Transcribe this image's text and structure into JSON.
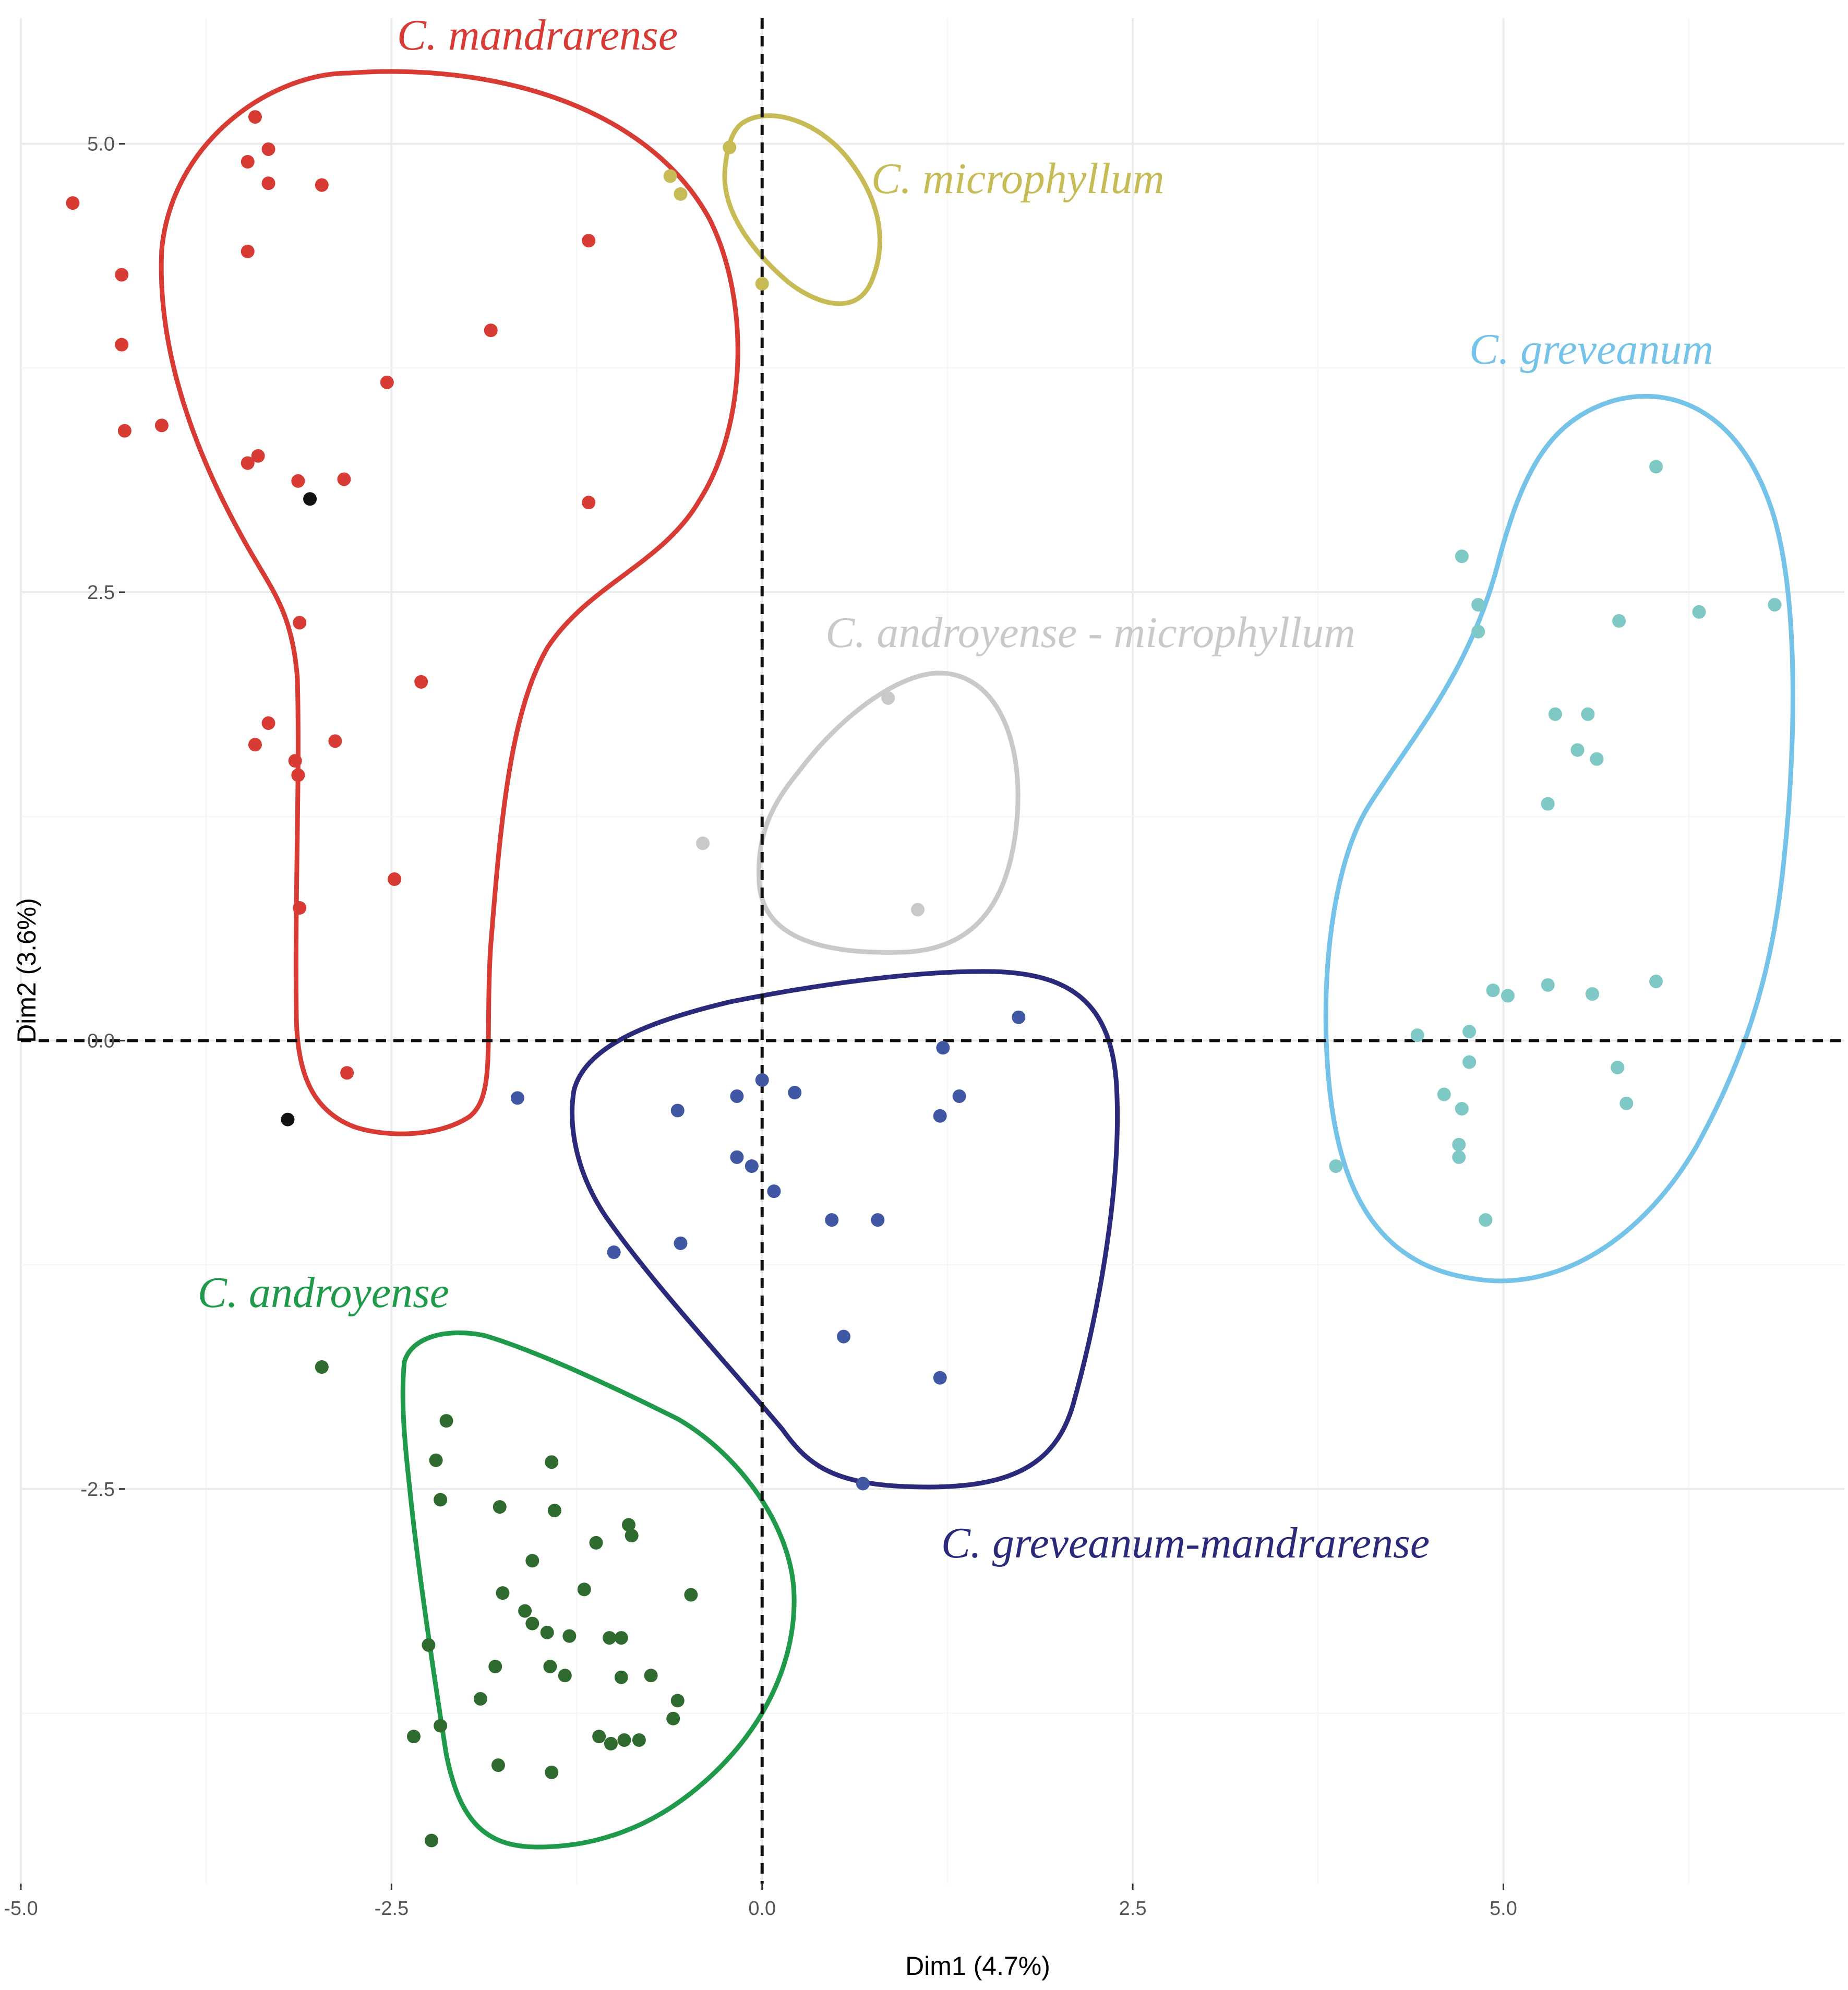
{
  "chart_data": {
    "type": "scatter",
    "xlabel": "Dim1 (4.7%)",
    "ylabel": "Dim2 (3.6%)",
    "xlim": [
      -5.0,
      7.3
    ],
    "ylim": [
      -4.7,
      5.7
    ],
    "x_ticks": [
      {
        "value": -5.0,
        "label": "-5.0"
      },
      {
        "value": -2.5,
        "label": "-2.5"
      },
      {
        "value": 0.0,
        "label": "0.0"
      },
      {
        "value": 2.5,
        "label": "2.5"
      },
      {
        "value": 5.0,
        "label": "5.0"
      }
    ],
    "y_ticks": [
      {
        "value": -2.5,
        "label": "-2.5"
      },
      {
        "value": 0.0,
        "label": "0.0"
      },
      {
        "value": 2.5,
        "label": "2.5"
      },
      {
        "value": 5.0,
        "label": "5.0"
      }
    ],
    "grid": true,
    "reference_lines": {
      "x": 0,
      "y": 0,
      "style": "dashed"
    },
    "series": [
      {
        "name": "C. mandrarense",
        "color": "#d83a34",
        "points": [
          [
            -4.65,
            4.67
          ],
          [
            -4.32,
            4.27
          ],
          [
            -4.32,
            3.88
          ],
          [
            -4.3,
            3.4
          ],
          [
            -4.05,
            3.43
          ],
          [
            -3.42,
            5.15
          ],
          [
            -3.47,
            4.9
          ],
          [
            -3.33,
            4.97
          ],
          [
            -3.33,
            4.78
          ],
          [
            -3.47,
            4.4
          ],
          [
            -2.97,
            4.77
          ],
          [
            -1.83,
            3.96
          ],
          [
            -2.53,
            3.67
          ],
          [
            -1.17,
            4.46
          ],
          [
            -3.47,
            3.22
          ],
          [
            -3.4,
            3.26
          ],
          [
            -3.13,
            3.12
          ],
          [
            -2.82,
            3.13
          ],
          [
            -1.17,
            3.0
          ],
          [
            -3.12,
            2.33
          ],
          [
            -2.3,
            2.0
          ],
          [
            -3.33,
            1.77
          ],
          [
            -3.42,
            1.65
          ],
          [
            -3.15,
            1.56
          ],
          [
            -2.88,
            1.67
          ],
          [
            -3.13,
            1.48
          ],
          [
            -2.48,
            0.9
          ],
          [
            -3.12,
            0.74
          ],
          [
            -2.8,
            -0.18
          ]
        ]
      },
      {
        "name": "C. microphyllum",
        "color": "#c6bb55",
        "points": [
          [
            -0.62,
            4.82
          ],
          [
            -0.55,
            4.72
          ],
          [
            -0.22,
            4.98
          ],
          [
            0.0,
            4.22
          ]
        ]
      },
      {
        "name": "C. greveanum",
        "color": "#7ec8c5",
        "points": [
          [
            6.03,
            3.2
          ],
          [
            4.72,
            2.7
          ],
          [
            4.83,
            2.43
          ],
          [
            4.83,
            2.28
          ],
          [
            5.78,
            2.34
          ],
          [
            6.32,
            2.39
          ],
          [
            6.83,
            2.43
          ],
          [
            5.35,
            1.82
          ],
          [
            5.57,
            1.82
          ],
          [
            5.5,
            1.62
          ],
          [
            5.63,
            1.57
          ],
          [
            5.3,
            1.32
          ],
          [
            4.93,
            0.28
          ],
          [
            5.03,
            0.25
          ],
          [
            5.3,
            0.31
          ],
          [
            5.6,
            0.26
          ],
          [
            6.03,
            0.33
          ],
          [
            4.42,
            0.03
          ],
          [
            4.77,
            0.05
          ],
          [
            4.77,
            -0.12
          ],
          [
            5.77,
            -0.15
          ],
          [
            5.83,
            -0.35
          ],
          [
            4.6,
            -0.3
          ],
          [
            4.72,
            -0.38
          ],
          [
            4.7,
            -0.58
          ],
          [
            4.7,
            -0.65
          ],
          [
            3.87,
            -0.7
          ],
          [
            4.88,
            -1.0
          ]
        ]
      },
      {
        "name": "C. androyense - microphyllum",
        "color": "#c9c9c9",
        "points": [
          [
            0.85,
            1.91
          ],
          [
            -0.4,
            1.1
          ],
          [
            1.05,
            0.73
          ]
        ]
      },
      {
        "name": "C. greveanum-mandrarense",
        "color": "#4057a3",
        "points": [
          [
            1.73,
            0.13
          ],
          [
            1.22,
            -0.04
          ],
          [
            -1.65,
            -0.32
          ],
          [
            -0.57,
            -0.39
          ],
          [
            -0.17,
            -0.31
          ],
          [
            0.0,
            -0.22
          ],
          [
            0.22,
            -0.29
          ],
          [
            1.33,
            -0.31
          ],
          [
            1.2,
            -0.42
          ],
          [
            -0.17,
            -0.65
          ],
          [
            -0.07,
            -0.7
          ],
          [
            0.08,
            -0.84
          ],
          [
            0.47,
            -1.0
          ],
          [
            0.78,
            -1.0
          ],
          [
            -1.0,
            -1.18
          ],
          [
            -0.55,
            -1.13
          ],
          [
            0.55,
            -1.65
          ],
          [
            1.2,
            -1.88
          ],
          [
            0.68,
            -2.47
          ]
        ]
      },
      {
        "name": "C. androyense",
        "color": "#2f6b2f",
        "points": [
          [
            -2.97,
            -1.82
          ],
          [
            -2.13,
            -2.12
          ],
          [
            -2.2,
            -2.34
          ],
          [
            -1.42,
            -2.35
          ],
          [
            -2.17,
            -2.56
          ],
          [
            -1.77,
            -2.6
          ],
          [
            -1.4,
            -2.62
          ],
          [
            -0.9,
            -2.7
          ],
          [
            -1.55,
            -2.9
          ],
          [
            -1.12,
            -2.8
          ],
          [
            -0.88,
            -2.76
          ],
          [
            -1.75,
            -3.08
          ],
          [
            -1.2,
            -3.06
          ],
          [
            -1.6,
            -3.18
          ],
          [
            -1.55,
            -3.25
          ],
          [
            -1.45,
            -3.3
          ],
          [
            -1.3,
            -3.32
          ],
          [
            -1.03,
            -3.33
          ],
          [
            -0.95,
            -3.33
          ],
          [
            -0.48,
            -3.09
          ],
          [
            -2.25,
            -3.37
          ],
          [
            -1.8,
            -3.49
          ],
          [
            -1.43,
            -3.49
          ],
          [
            -1.33,
            -3.54
          ],
          [
            -0.95,
            -3.55
          ],
          [
            -0.75,
            -3.54
          ],
          [
            -1.9,
            -3.67
          ],
          [
            -0.57,
            -3.68
          ],
          [
            -0.6,
            -3.78
          ],
          [
            -2.35,
            -3.88
          ],
          [
            -2.17,
            -3.82
          ],
          [
            -1.1,
            -3.88
          ],
          [
            -1.02,
            -3.92
          ],
          [
            -0.93,
            -3.9
          ],
          [
            -0.83,
            -3.9
          ],
          [
            -1.78,
            -4.04
          ],
          [
            -1.42,
            -4.08
          ],
          [
            -2.23,
            -4.46
          ]
        ]
      },
      {
        "name": "",
        "color": "#111111",
        "points": [
          [
            -3.05,
            3.02
          ],
          [
            -3.2,
            -0.44
          ]
        ]
      }
    ],
    "annotations": [
      {
        "text": "C. mandrarense",
        "color": "#d83a34"
      },
      {
        "text": "C. microphyllum",
        "color": "#c6bb55"
      },
      {
        "text": "C. greveanum",
        "color": "#75c3e8"
      },
      {
        "text": "C. androyense - microphyllum",
        "color": "#c9c9c9"
      },
      {
        "text": "C. greveanum-mandrarense",
        "color": "#2b2a7a"
      },
      {
        "text": "C. androyense",
        "color": "#1f9a4a"
      }
    ],
    "hull_colors": {
      "mandrarense": "#d83a34",
      "microphyllum": "#c6bb55",
      "greveanum": "#75c3e8",
      "androyense_microphyllum": "#c9c9c9",
      "greveanum_mandrarense": "#2b2a7a",
      "androyense": "#1f9a4a"
    }
  }
}
